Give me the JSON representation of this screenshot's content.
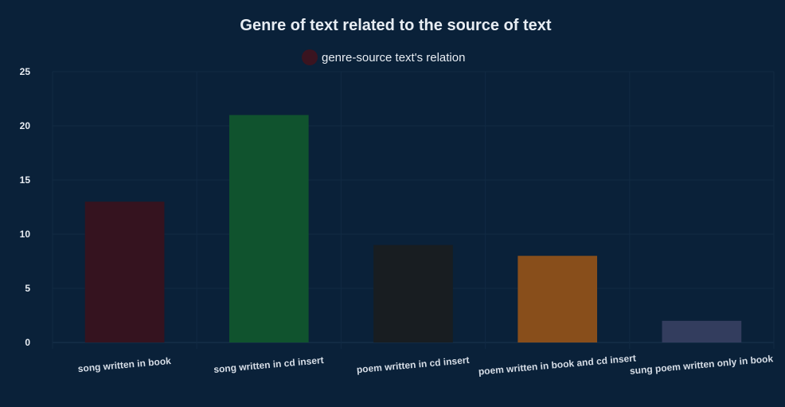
{
  "chart_data": {
    "type": "bar",
    "title": "Genre of text related to the source of text",
    "legend": {
      "label": "genre-source text's relation",
      "color": "#3a1420",
      "position": "top-center"
    },
    "categories": [
      "song written in book",
      "song written in cd insert",
      "poem written in cd insert",
      "poem written in book and cd insert",
      "sung poem written only in book"
    ],
    "values": [
      13,
      21,
      9,
      8,
      2
    ],
    "colors": [
      "#35131f",
      "#10532e",
      "#181d21",
      "#884e1b",
      "#333d5e"
    ],
    "ylim": [
      0,
      25
    ],
    "yticks": [
      0,
      5,
      10,
      15,
      20,
      25
    ],
    "xlabel": "",
    "ylabel": "",
    "grid": true
  },
  "colors": {
    "background": "#0a2139",
    "text": "#e8edf3",
    "grid": "#112a43"
  }
}
